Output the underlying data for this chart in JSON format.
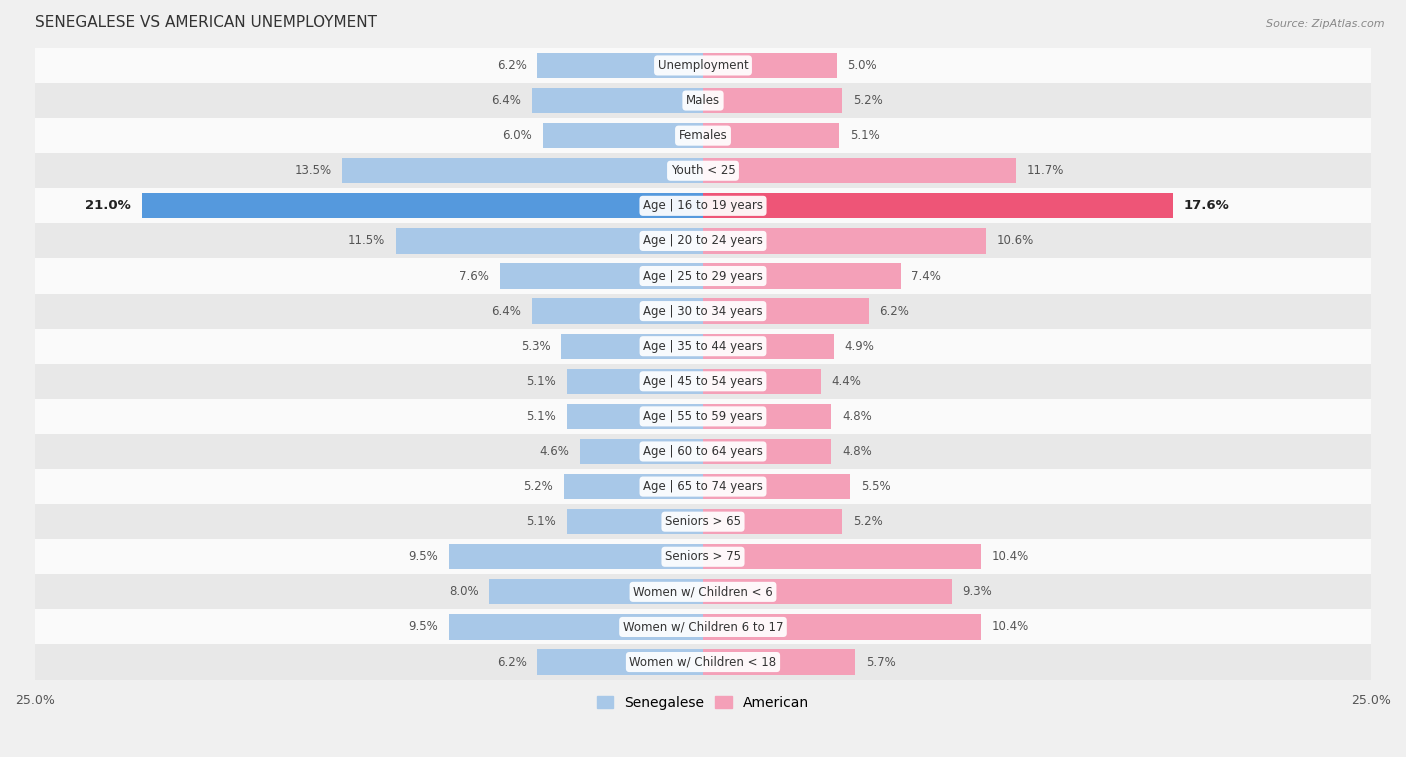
{
  "title": "SENEGALESE VS AMERICAN UNEMPLOYMENT",
  "source": "Source: ZipAtlas.com",
  "categories": [
    "Unemployment",
    "Males",
    "Females",
    "Youth < 25",
    "Age | 16 to 19 years",
    "Age | 20 to 24 years",
    "Age | 25 to 29 years",
    "Age | 30 to 34 years",
    "Age | 35 to 44 years",
    "Age | 45 to 54 years",
    "Age | 55 to 59 years",
    "Age | 60 to 64 years",
    "Age | 65 to 74 years",
    "Seniors > 65",
    "Seniors > 75",
    "Women w/ Children < 6",
    "Women w/ Children 6 to 17",
    "Women w/ Children < 18"
  ],
  "senegalese": [
    6.2,
    6.4,
    6.0,
    13.5,
    21.0,
    11.5,
    7.6,
    6.4,
    5.3,
    5.1,
    5.1,
    4.6,
    5.2,
    5.1,
    9.5,
    8.0,
    9.5,
    6.2
  ],
  "american": [
    5.0,
    5.2,
    5.1,
    11.7,
    17.6,
    10.6,
    7.4,
    6.2,
    4.9,
    4.4,
    4.8,
    4.8,
    5.5,
    5.2,
    10.4,
    9.3,
    10.4,
    5.7
  ],
  "senegalese_color": "#a8c8e8",
  "american_color": "#f4a0b8",
  "senegalese_highlight": "#5599dd",
  "american_highlight": "#ee5577",
  "background_color": "#f0f0f0",
  "row_color_light": "#fafafa",
  "row_color_dark": "#e8e8e8",
  "xlim": 25.0,
  "legend_label_left": "Senegalese",
  "legend_label_right": "American",
  "highlight_row": "Age | 16 to 19 years"
}
